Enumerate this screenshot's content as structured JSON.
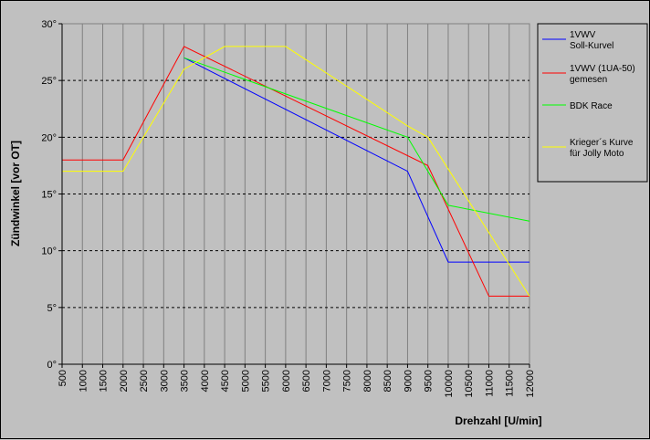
{
  "chart_data": {
    "type": "line",
    "title": "",
    "xlabel": "Drehzahl [U/min]",
    "ylabel": "Zündwinkel [vor OT]",
    "x": [
      500,
      1000,
      1500,
      2000,
      2500,
      3000,
      3500,
      4000,
      4500,
      5000,
      5500,
      6000,
      6500,
      7000,
      7500,
      8000,
      8500,
      9000,
      9500,
      10000,
      10500,
      11000,
      11500,
      12000
    ],
    "xlim": [
      500,
      12000
    ],
    "ylim": [
      0,
      30
    ],
    "ytick_labels": [
      "0°",
      "5°",
      "10°",
      "15°",
      "20°",
      "25°",
      "30°"
    ],
    "grid": "horizontal dashed",
    "plot_background": "#c0c0c0",
    "legend_position": "right",
    "series": [
      {
        "name": "1VWV Soll-Kurvel",
        "legend_lines": [
          "1VWV",
          "Soll-Kurvel"
        ],
        "color": "#0000ff",
        "points": [
          [
            3500,
            27
          ],
          [
            9000,
            17
          ],
          [
            10000,
            9
          ],
          [
            12000,
            9
          ]
        ]
      },
      {
        "name": "1VWV (1UA-50) gemesen",
        "legend_lines": [
          "1VWV (1UA-50)",
          "gemesen"
        ],
        "color": "#ff0000",
        "points": [
          [
            500,
            18
          ],
          [
            2000,
            18
          ],
          [
            3500,
            28
          ],
          [
            9500,
            17.5
          ],
          [
            11000,
            6
          ],
          [
            12000,
            6
          ]
        ]
      },
      {
        "name": "BDK Race",
        "legend_lines": [
          "BDK Race"
        ],
        "color": "#00ff00",
        "points": [
          [
            3500,
            27
          ],
          [
            9000,
            20
          ],
          [
            10000,
            14
          ],
          [
            12000,
            12.6
          ]
        ]
      },
      {
        "name": "Krieger´s Kurve für Jolly Moto",
        "legend_lines": [
          "Krieger´s Kurve",
          "für Jolly Moto"
        ],
        "color": "#ffff00",
        "points": [
          [
            500,
            17
          ],
          [
            2000,
            17
          ],
          [
            3500,
            26
          ],
          [
            4500,
            28
          ],
          [
            6000,
            28
          ],
          [
            9000,
            21
          ],
          [
            9500,
            20
          ],
          [
            12000,
            6
          ]
        ]
      }
    ]
  }
}
